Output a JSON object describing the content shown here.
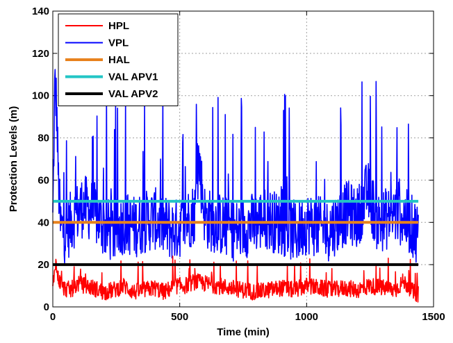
{
  "chart_data": {
    "type": "line",
    "title": "",
    "xlabel": "Time (min)",
    "ylabel": "Protection Levels (m)",
    "xlim": [
      0,
      1500
    ],
    "ylim": [
      0,
      140
    ],
    "x_ticks": [
      0,
      500,
      1000,
      1500
    ],
    "y_ticks": [
      0,
      20,
      40,
      60,
      80,
      100,
      120,
      140
    ],
    "grid": true,
    "legend_position": "top-left",
    "series": [
      {
        "name": "HPL",
        "color": "#ff0000",
        "style": "noisy",
        "x": [
          0,
          10,
          20,
          40,
          70,
          100,
          130,
          160,
          200,
          240,
          280,
          320,
          360,
          400,
          440,
          480,
          520,
          560,
          600,
          650,
          700,
          750,
          800,
          850,
          900,
          950,
          1000,
          1050,
          1100,
          1150,
          1200,
          1250,
          1300,
          1350,
          1380,
          1400,
          1420,
          1440
        ],
        "y": [
          8,
          22,
          14,
          9,
          8,
          11,
          10,
          9,
          7,
          8,
          10,
          7,
          8,
          9,
          7,
          10,
          10,
          12,
          11,
          10,
          9,
          8,
          7,
          8,
          9,
          8,
          10,
          9,
          8,
          9,
          8,
          10,
          9,
          8,
          12,
          10,
          7,
          6
        ]
      },
      {
        "name": "VPL",
        "color": "#0000ff",
        "style": "noisy",
        "x": [
          0,
          8,
          15,
          22,
          30,
          50,
          80,
          120,
          160,
          200,
          240,
          280,
          320,
          360,
          400,
          440,
          480,
          520,
          560,
          575,
          600,
          640,
          680,
          720,
          760,
          800,
          840,
          880,
          920,
          960,
          1000,
          1040,
          1080,
          1120,
          1160,
          1200,
          1240,
          1280,
          1320,
          1360,
          1400,
          1440
        ],
        "y": [
          40,
          105,
          95,
          60,
          38,
          35,
          42,
          48,
          45,
          38,
          35,
          40,
          38,
          40,
          42,
          38,
          36,
          40,
          45,
          70,
          42,
          40,
          38,
          36,
          38,
          40,
          42,
          40,
          38,
          35,
          40,
          38,
          36,
          40,
          45,
          42,
          55,
          40,
          42,
          45,
          40,
          35
        ]
      },
      {
        "name": "HAL",
        "color": "#e8821e",
        "style": "constant",
        "x": [
          0,
          1440
        ],
        "y": [
          40,
          40
        ]
      },
      {
        "name": "VAL APV1",
        "color": "#22c5c5",
        "style": "constant",
        "x": [
          0,
          1440
        ],
        "y": [
          50,
          50
        ]
      },
      {
        "name": "VAL APV2",
        "color": "#000000",
        "style": "constant",
        "x": [
          0,
          1440
        ],
        "y": [
          20,
          20
        ]
      }
    ]
  }
}
